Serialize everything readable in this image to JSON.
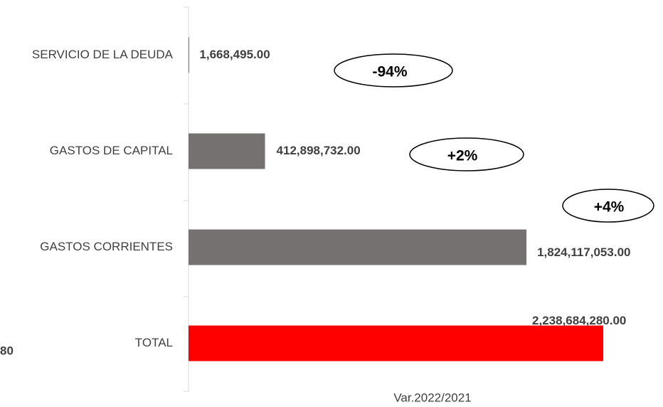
{
  "chart_data": {
    "type": "bar",
    "orientation": "horizontal",
    "x_label": "Var.2022/2021",
    "categories": [
      "SERVICIO DE LA DEUDA",
      "GASTOS DE CAPITAL",
      "GASTOS CORRIENTES",
      "TOTAL"
    ],
    "values": [
      1668495,
      412898732,
      1824117053,
      2238684280
    ],
    "value_labels": [
      "1,668,495.00",
      "412,898,732.00",
      "1,824,117,053.00",
      "2,238,684,280.00"
    ],
    "colors": [
      "#767171",
      "#767171",
      "#767171",
      "#ff0000"
    ],
    "xlim": [
      0,
      2300000000
    ],
    "annotations": [
      "-94%",
      "+2%",
      "+4%",
      "80"
    ]
  }
}
